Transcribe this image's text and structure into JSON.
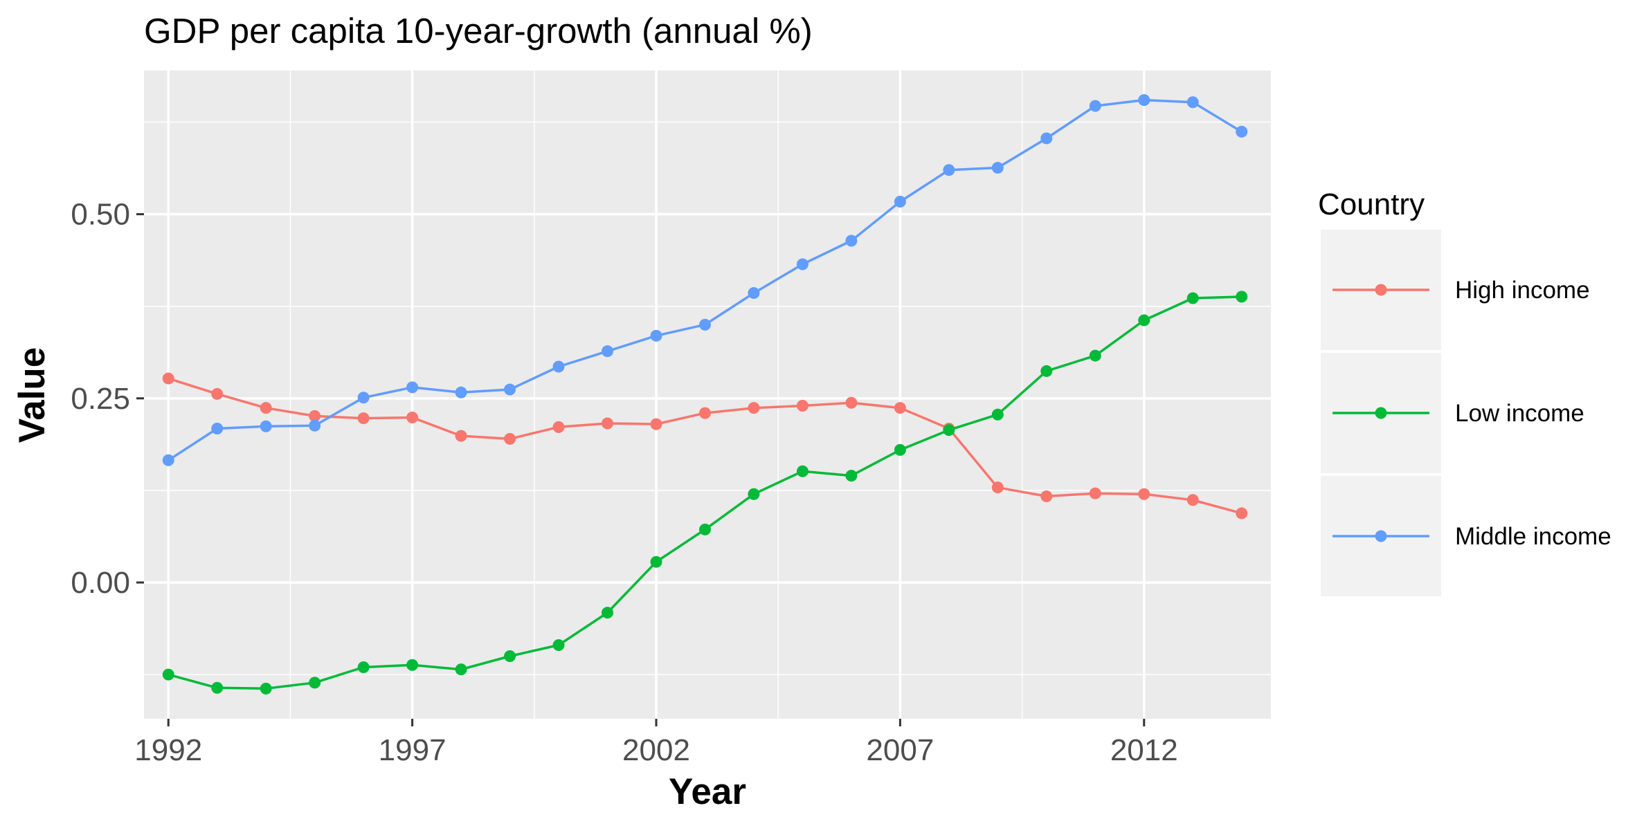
{
  "chart_data": {
    "type": "line",
    "title": "GDP per capita 10-year-growth (annual %)",
    "xlabel": "Year",
    "ylabel": "Value",
    "x": [
      1992,
      1993,
      1994,
      1995,
      1996,
      1997,
      1998,
      1999,
      2000,
      2001,
      2002,
      2003,
      2004,
      2005,
      2006,
      2007,
      2008,
      2009,
      2010,
      2011,
      2012,
      2013,
      2014
    ],
    "xlim": [
      1991.5,
      2014.6
    ],
    "ylim": [
      -0.185,
      0.695
    ],
    "x_ticks": [
      1992,
      1997,
      2002,
      2007,
      2012
    ],
    "x_tick_labels": [
      "1992",
      "1997",
      "2002",
      "2007",
      "2012"
    ],
    "y_ticks": [
      0.0,
      0.25,
      0.5
    ],
    "y_tick_labels": [
      "0.00",
      "0.25",
      "0.50"
    ],
    "y_minor_ticks": [
      -0.125,
      0.125,
      0.375,
      0.625
    ],
    "grid": true,
    "legend": {
      "title": "Country",
      "position": "right"
    },
    "series": [
      {
        "name": "High income",
        "color": "#F8766D",
        "values": [
          0.277,
          0.256,
          0.237,
          0.226,
          0.223,
          0.224,
          0.199,
          0.195,
          0.211,
          0.216,
          0.215,
          0.23,
          0.237,
          0.24,
          0.244,
          0.237,
          0.209,
          0.129,
          0.117,
          0.121,
          0.12,
          0.112,
          0.094
        ]
      },
      {
        "name": "Low income",
        "color": "#00BA38",
        "values": [
          -0.125,
          -0.143,
          -0.144,
          -0.136,
          -0.115,
          -0.112,
          -0.118,
          -0.1,
          -0.085,
          -0.041,
          0.028,
          0.072,
          0.12,
          0.151,
          0.145,
          0.18,
          0.207,
          0.228,
          0.287,
          0.308,
          0.356,
          0.386,
          0.388
        ]
      },
      {
        "name": "Middle income",
        "color": "#619CFF",
        "values": [
          0.166,
          0.209,
          0.212,
          0.213,
          0.251,
          0.265,
          0.258,
          0.262,
          0.293,
          0.314,
          0.335,
          0.35,
          0.393,
          0.432,
          0.464,
          0.517,
          0.56,
          0.563,
          0.603,
          0.647,
          0.655,
          0.652,
          0.612
        ]
      }
    ]
  }
}
